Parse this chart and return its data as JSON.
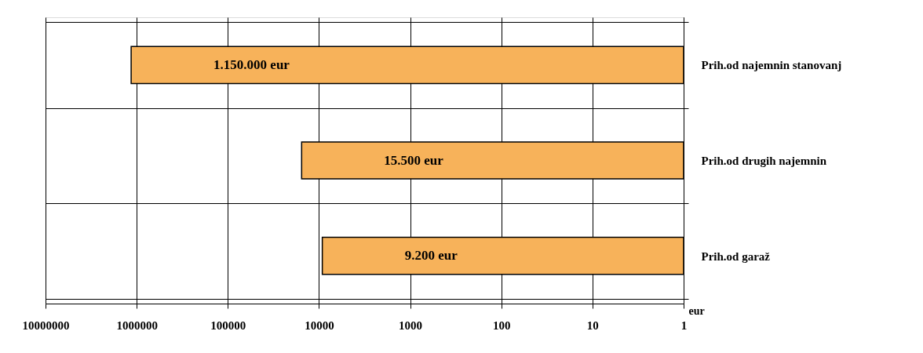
{
  "chart_data": {
    "type": "bar",
    "orientation": "horizontal",
    "log": "x",
    "xlabel": "eur",
    "categories": [
      "Prih.od najemnin stanovanj",
      "Prih.od drugih najemnin",
      "Prih.od garaž"
    ],
    "values": [
      1150000,
      15500,
      9200
    ],
    "color": "#f7b25a",
    "value_labels": [
      "1.150.000 eur",
      "15.500 eur",
      "9.200 eur"
    ],
    "xlim": [
      10000000,
      1
    ],
    "xticks": [
      10000000,
      1000000,
      100000,
      10000,
      1000,
      100,
      10,
      1
    ],
    "grid": true
  }
}
